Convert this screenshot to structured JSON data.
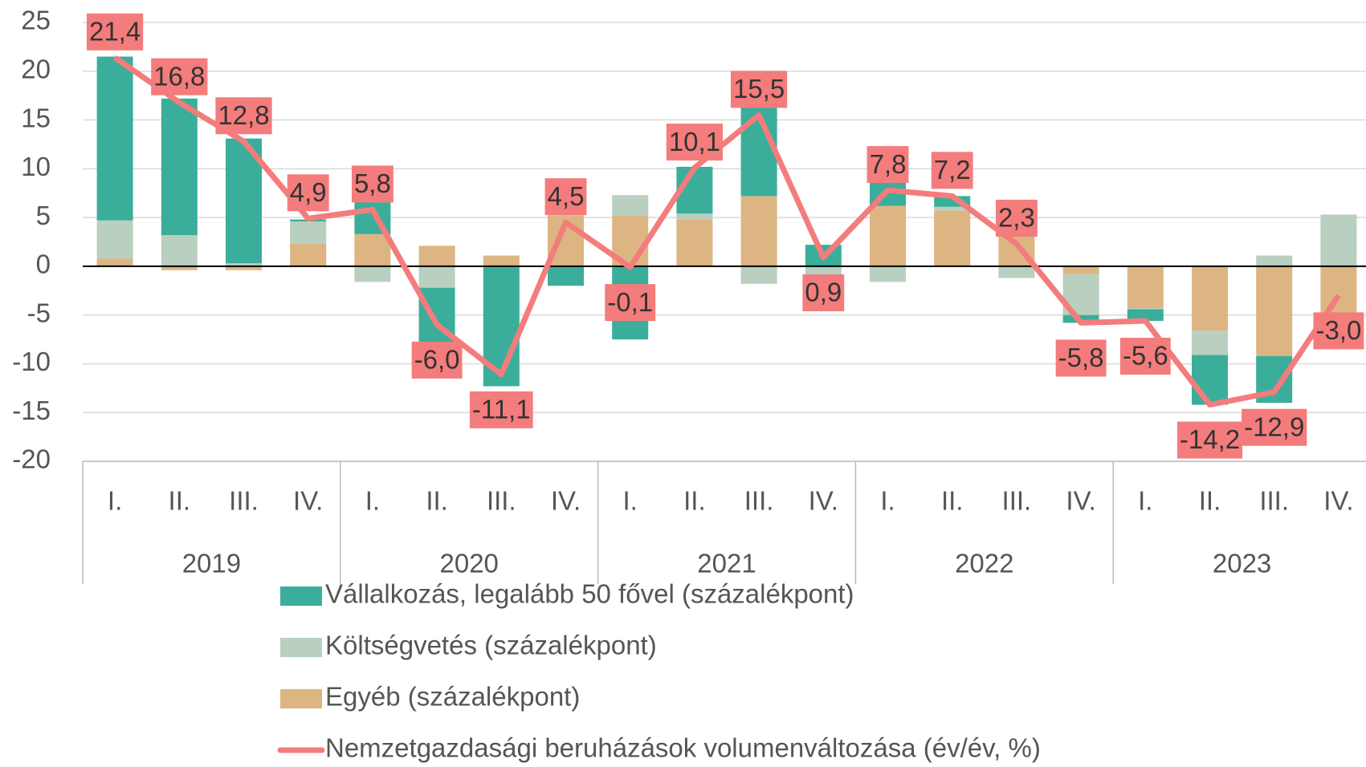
{
  "chart_data": {
    "type": "bar",
    "stacked": true,
    "categories": [
      "I.",
      "II.",
      "III.",
      "IV.",
      "I.",
      "II.",
      "III.",
      "IV.",
      "I.",
      "II.",
      "III.",
      "IV.",
      "I.",
      "II.",
      "III.",
      "IV.",
      "I.",
      "II.",
      "III.",
      "IV."
    ],
    "years": [
      "2019",
      "2020",
      "2021",
      "2022",
      "2023"
    ],
    "ylim": [
      -20,
      25
    ],
    "yticks": [
      -20,
      -15,
      -10,
      -5,
      0,
      5,
      10,
      15,
      20,
      25
    ],
    "grid": true,
    "series": [
      {
        "name": "Vállalkozás, legalább 50 fővel (százalékpont)",
        "color": "#3aae9a",
        "values": [
          16.8,
          14.0,
          12.8,
          0.2,
          4.0,
          -6.1,
          -12.2,
          -2.0,
          -7.5,
          4.8,
          9.8,
          2.2,
          3.3,
          1.1,
          0.4,
          -0.8,
          -1.2,
          -5.1,
          -4.8,
          -2.0
        ]
      },
      {
        "name": "Költségvetés (százalékpont)",
        "color": "#b9cfc0",
        "values": [
          3.9,
          3.2,
          0.3,
          2.3,
          -1.6,
          -2.2,
          -0.1,
          1.2,
          2.1,
          0.6,
          -1.8,
          -1.3,
          -1.6,
          0.4,
          -1.2,
          -4.2,
          -0.1,
          -2.5,
          1.1,
          5.3
        ]
      },
      {
        "name": "Egyéb (százalékpont)",
        "color": "#ddb582",
        "values": [
          0.8,
          -0.4,
          -0.4,
          2.3,
          3.3,
          2.1,
          1.1,
          5.2,
          5.2,
          4.8,
          7.2,
          0,
          6.2,
          5.7,
          3.1,
          -0.8,
          -4.3,
          -6.6,
          -9.2,
          -6.3
        ]
      },
      {
        "name": "Nemzetgazdasági beruházások volumenváltozása (év/év, %)",
        "color": "#f47c7c",
        "type": "line",
        "values": [
          21.4,
          16.8,
          12.8,
          4.9,
          5.8,
          -6.0,
          -11.1,
          4.5,
          -0.1,
          10.1,
          15.5,
          0.9,
          7.8,
          7.2,
          2.3,
          -5.8,
          -5.6,
          -14.2,
          -12.9,
          -3.0
        ],
        "value_labels": [
          "21,4",
          "16,8",
          "12,8",
          "4,9",
          "5,8",
          "-6,0",
          "-11,1",
          "4,5",
          "-0,1",
          "10,1",
          "15,5",
          "0,9",
          "7,8",
          "7,2",
          "2,3",
          "-5,8",
          "-5,6",
          "-14,2",
          "-12,9",
          "-3,0"
        ]
      }
    ]
  }
}
